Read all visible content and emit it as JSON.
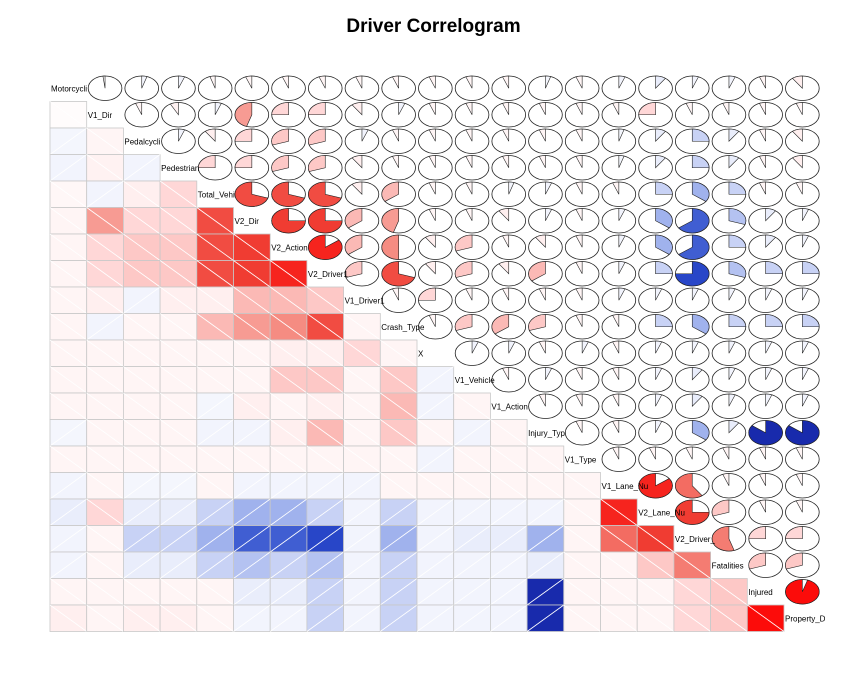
{
  "chart_data": {
    "type": "heatmap",
    "title": "Driver Correlogram",
    "variables": [
      "Motorcycli",
      "V1_Dir",
      "Pedalcycli",
      "Pedestrian",
      "Total_Vehi",
      "V2_Dir",
      "V2_Action",
      "V2_Driver1",
      "V1_Driver1",
      "Crash_Type",
      "X",
      "V1_Vehicle",
      "V1_Action",
      "Injury_Typ",
      "V1_Type",
      "V1_Lane_Nu",
      "V2_Lane_Nu",
      "V2_Driver_",
      "Fatalities",
      "Injured",
      "Property_D"
    ],
    "lower_panel": "shade",
    "upper_panel": "pie",
    "diagonal": "variable names",
    "correlations": [
      [
        1.0,
        -0.02,
        0.05,
        0.06,
        -0.05,
        -0.06,
        -0.06,
        -0.06,
        -0.06,
        -0.06,
        -0.06,
        -0.06,
        -0.06,
        0.05,
        -0.06,
        0.06,
        0.1,
        0.06,
        0.06,
        -0.06,
        -0.1
      ],
      [
        -0.02,
        1.0,
        -0.06,
        -0.08,
        0.06,
        -0.45,
        -0.25,
        -0.25,
        -0.1,
        0.06,
        -0.06,
        -0.06,
        -0.06,
        -0.06,
        -0.06,
        -0.06,
        -0.25,
        -0.06,
        -0.06,
        -0.06,
        -0.06
      ],
      [
        0.05,
        -0.06,
        1.0,
        0.06,
        -0.1,
        -0.25,
        -0.3,
        -0.3,
        0.06,
        -0.06,
        -0.06,
        -0.06,
        -0.06,
        -0.06,
        -0.06,
        0.05,
        0.1,
        0.25,
        0.1,
        -0.06,
        -0.1
      ],
      [
        0.06,
        -0.08,
        0.06,
        1.0,
        -0.25,
        -0.25,
        -0.3,
        -0.3,
        -0.1,
        -0.06,
        -0.06,
        -0.06,
        -0.06,
        -0.06,
        -0.06,
        0.05,
        0.1,
        0.25,
        0.1,
        -0.06,
        -0.1
      ],
      [
        -0.05,
        0.06,
        -0.1,
        -0.25,
        1.0,
        -0.7,
        -0.7,
        -0.7,
        -0.1,
        -0.35,
        -0.06,
        -0.06,
        0.05,
        0.06,
        -0.06,
        -0.06,
        0.25,
        0.35,
        0.25,
        -0.06,
        -0.06
      ],
      [
        -0.06,
        -0.45,
        -0.25,
        -0.25,
        -0.7,
        1.0,
        -0.75,
        -0.75,
        -0.35,
        -0.45,
        -0.06,
        -0.06,
        -0.1,
        0.06,
        -0.06,
        0.06,
        0.35,
        0.65,
        0.3,
        0.1,
        0.06
      ],
      [
        -0.06,
        -0.25,
        -0.3,
        -0.3,
        -0.7,
        -0.75,
        1.0,
        -0.85,
        -0.35,
        -0.5,
        -0.1,
        -0.3,
        -0.06,
        -0.1,
        -0.06,
        0.06,
        0.35,
        0.65,
        0.25,
        0.1,
        0.06
      ],
      [
        -0.06,
        -0.25,
        -0.3,
        -0.3,
        -0.7,
        -0.75,
        -0.85,
        1.0,
        -0.3,
        -0.7,
        -0.1,
        -0.3,
        -0.1,
        -0.35,
        -0.06,
        0.06,
        0.25,
        0.75,
        0.3,
        0.25,
        0.25
      ],
      [
        -0.06,
        -0.1,
        0.06,
        -0.1,
        -0.1,
        -0.35,
        -0.35,
        -0.3,
        1.0,
        -0.06,
        -0.25,
        -0.06,
        -0.06,
        -0.06,
        -0.06,
        0.06,
        0.06,
        0.06,
        0.06,
        0.06,
        0.06
      ],
      [
        -0.06,
        0.06,
        -0.06,
        -0.06,
        -0.35,
        -0.45,
        -0.5,
        -0.7,
        -0.06,
        1.0,
        -0.06,
        -0.3,
        -0.35,
        -0.3,
        -0.06,
        -0.06,
        0.25,
        0.35,
        0.25,
        0.25,
        0.25
      ],
      [
        -0.06,
        -0.06,
        -0.06,
        -0.06,
        -0.06,
        -0.06,
        -0.1,
        -0.1,
        -0.25,
        -0.06,
        1.0,
        0.06,
        0.06,
        -0.06,
        0.06,
        -0.06,
        0.06,
        0.06,
        0.06,
        0.06,
        0.06
      ],
      [
        -0.06,
        -0.06,
        -0.06,
        -0.06,
        -0.06,
        -0.06,
        -0.3,
        -0.3,
        -0.06,
        -0.3,
        0.06,
        1.0,
        -0.06,
        0.06,
        -0.06,
        -0.06,
        0.06,
        0.1,
        0.06,
        0.06,
        0.06
      ],
      [
        -0.06,
        -0.06,
        -0.06,
        -0.06,
        0.05,
        -0.1,
        -0.06,
        -0.1,
        -0.06,
        -0.35,
        0.06,
        -0.06,
        1.0,
        -0.06,
        -0.06,
        -0.06,
        0.06,
        0.1,
        0.06,
        0.06,
        0.06
      ],
      [
        0.05,
        -0.06,
        -0.06,
        -0.06,
        0.06,
        0.06,
        -0.1,
        -0.35,
        -0.06,
        -0.3,
        -0.06,
        0.06,
        -0.06,
        1.0,
        -0.06,
        -0.06,
        0.06,
        0.35,
        0.1,
        0.85,
        0.85
      ],
      [
        -0.06,
        -0.06,
        -0.06,
        -0.06,
        -0.06,
        -0.06,
        -0.06,
        -0.06,
        -0.06,
        -0.06,
        0.06,
        -0.06,
        -0.06,
        -0.06,
        1.0,
        -0.06,
        -0.06,
        -0.06,
        -0.06,
        -0.06,
        -0.06
      ],
      [
        0.06,
        -0.06,
        0.05,
        0.05,
        -0.06,
        0.06,
        0.06,
        0.06,
        0.06,
        -0.06,
        -0.06,
        -0.06,
        -0.06,
        -0.06,
        -0.06,
        1.0,
        -0.85,
        -0.6,
        -0.06,
        -0.06,
        -0.06
      ],
      [
        0.1,
        -0.25,
        0.1,
        0.1,
        0.25,
        0.35,
        0.35,
        0.25,
        0.06,
        0.25,
        0.06,
        0.06,
        0.06,
        0.06,
        -0.06,
        -0.85,
        1.0,
        -0.75,
        -0.3,
        -0.06,
        -0.06
      ],
      [
        0.06,
        -0.06,
        0.25,
        0.25,
        0.35,
        0.65,
        0.65,
        0.75,
        0.06,
        0.35,
        0.06,
        0.1,
        0.1,
        0.35,
        -0.06,
        -0.6,
        -0.75,
        1.0,
        -0.55,
        -0.25,
        -0.25
      ],
      [
        0.06,
        -0.06,
        0.1,
        0.1,
        0.25,
        0.3,
        0.25,
        0.3,
        0.06,
        0.25,
        0.06,
        0.06,
        0.06,
        0.1,
        -0.06,
        -0.06,
        -0.3,
        -0.55,
        1.0,
        -0.3,
        -0.3
      ],
      [
        -0.06,
        -0.06,
        -0.06,
        -0.06,
        -0.06,
        0.1,
        0.1,
        0.25,
        0.06,
        0.25,
        0.06,
        0.06,
        0.06,
        0.85,
        -0.06,
        -0.06,
        -0.06,
        -0.25,
        -0.3,
        1.0,
        -0.95
      ],
      [
        -0.1,
        -0.06,
        -0.1,
        -0.1,
        -0.06,
        0.06,
        0.06,
        0.25,
        0.06,
        0.25,
        0.06,
        0.06,
        0.06,
        0.85,
        -0.06,
        -0.06,
        -0.06,
        -0.25,
        -0.3,
        -0.95,
        1.0
      ]
    ]
  }
}
